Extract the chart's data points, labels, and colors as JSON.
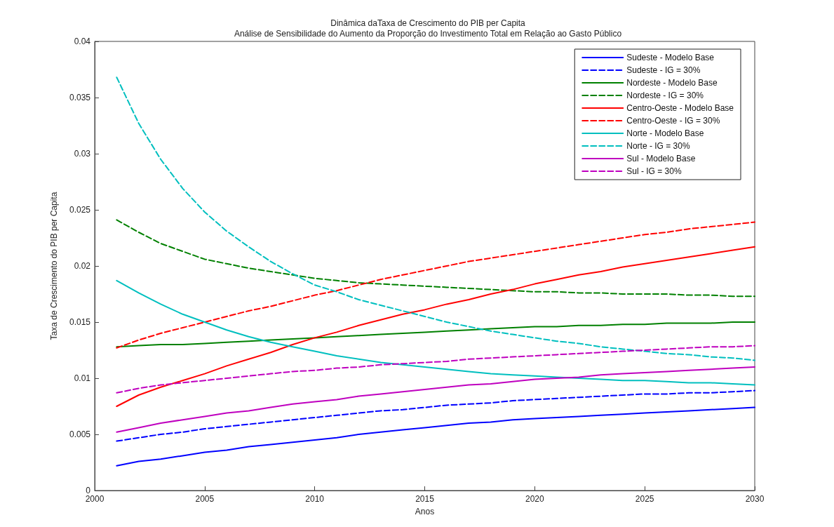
{
  "chart_data": {
    "type": "line",
    "title": "Dinâmica daTaxa de Crescimento do PIB per Capita",
    "subtitle": "Análise de Sensibilidade do Aumento da Proporção do Investimento Total em Relação ao Gasto Público",
    "xlabel": "Anos",
    "ylabel": "Taxa de Crescimento do PIB per Capita",
    "x": [
      2001,
      2002,
      2003,
      2004,
      2005,
      2006,
      2007,
      2008,
      2009,
      2010,
      2011,
      2012,
      2013,
      2014,
      2015,
      2016,
      2017,
      2018,
      2019,
      2020,
      2021,
      2022,
      2023,
      2024,
      2025,
      2026,
      2027,
      2028,
      2029,
      2030
    ],
    "xlim": [
      2000,
      2030
    ],
    "xticks": [
      2000,
      2005,
      2010,
      2015,
      2020,
      2025,
      2030
    ],
    "ylim": [
      0,
      0.04
    ],
    "yticks": [
      0,
      0.005,
      0.01,
      0.015,
      0.02,
      0.025,
      0.03,
      0.035,
      0.04
    ],
    "legend": "top right",
    "series": [
      {
        "name": "Sudeste - Modelo Base",
        "color": "#0000ff",
        "line_style": "solid",
        "values": [
          0.0022,
          0.0026,
          0.0028,
          0.0031,
          0.0034,
          0.0036,
          0.0039,
          0.0041,
          0.0043,
          0.0045,
          0.0047,
          0.005,
          0.0052,
          0.0054,
          0.0056,
          0.0058,
          0.006,
          0.0061,
          0.0063,
          0.0064,
          0.0065,
          0.0066,
          0.0067,
          0.0068,
          0.0069,
          0.007,
          0.0071,
          0.0072,
          0.0073,
          0.0074
        ]
      },
      {
        "name": "Sudeste - IG = 30%",
        "color": "#0000ff",
        "line_style": "dashed",
        "values": [
          0.0044,
          0.0047,
          0.005,
          0.0052,
          0.0055,
          0.0057,
          0.0059,
          0.0061,
          0.0063,
          0.0065,
          0.0067,
          0.0069,
          0.0071,
          0.0072,
          0.0074,
          0.0076,
          0.0077,
          0.0078,
          0.008,
          0.0081,
          0.0082,
          0.0083,
          0.0084,
          0.0085,
          0.0086,
          0.0086,
          0.0087,
          0.0087,
          0.0088,
          0.0089
        ]
      },
      {
        "name": "Nordeste - Modelo Base",
        "color": "#008000",
        "line_style": "solid",
        "values": [
          0.0128,
          0.0129,
          0.013,
          0.013,
          0.0131,
          0.0132,
          0.0133,
          0.0134,
          0.0135,
          0.0136,
          0.0137,
          0.0138,
          0.0139,
          0.014,
          0.0141,
          0.0142,
          0.0143,
          0.0144,
          0.0145,
          0.0146,
          0.0146,
          0.0147,
          0.0147,
          0.0148,
          0.0148,
          0.0149,
          0.0149,
          0.0149,
          0.015,
          0.015
        ]
      },
      {
        "name": "Nordeste - IG = 30%",
        "color": "#008000",
        "line_style": "dashed",
        "values": [
          0.0241,
          0.023,
          0.022,
          0.0213,
          0.0206,
          0.0202,
          0.0198,
          0.0195,
          0.0192,
          0.0189,
          0.0187,
          0.0185,
          0.0184,
          0.0183,
          0.0182,
          0.0181,
          0.018,
          0.0179,
          0.0178,
          0.0177,
          0.0177,
          0.0176,
          0.0176,
          0.0175,
          0.0175,
          0.0175,
          0.0174,
          0.0174,
          0.0173,
          0.0173
        ]
      },
      {
        "name": "Centro-Oeste - Modelo Base",
        "color": "#ff0000",
        "line_style": "solid",
        "values": [
          0.0075,
          0.0085,
          0.0092,
          0.0098,
          0.0104,
          0.0111,
          0.0117,
          0.0123,
          0.013,
          0.0136,
          0.0141,
          0.0147,
          0.0152,
          0.0157,
          0.0161,
          0.0166,
          0.017,
          0.0175,
          0.0179,
          0.0184,
          0.0188,
          0.0192,
          0.0195,
          0.0199,
          0.0202,
          0.0205,
          0.0208,
          0.0211,
          0.0214,
          0.0217
        ]
      },
      {
        "name": "Centro-Oeste - IG = 30%",
        "color": "#ff0000",
        "line_style": "dashed",
        "values": [
          0.0127,
          0.0134,
          0.014,
          0.0145,
          0.015,
          0.0155,
          0.016,
          0.0164,
          0.0169,
          0.0174,
          0.0178,
          0.0183,
          0.0188,
          0.0192,
          0.0196,
          0.02,
          0.0204,
          0.0207,
          0.021,
          0.0213,
          0.0216,
          0.0219,
          0.0222,
          0.0225,
          0.0228,
          0.023,
          0.0233,
          0.0235,
          0.0237,
          0.0239
        ]
      },
      {
        "name": "Norte - Modelo Base",
        "color": "#00bfbf",
        "line_style": "solid",
        "values": [
          0.0187,
          0.0176,
          0.0166,
          0.0157,
          0.015,
          0.0143,
          0.0137,
          0.0132,
          0.0128,
          0.0124,
          0.012,
          0.0117,
          0.0114,
          0.0112,
          0.011,
          0.0108,
          0.0106,
          0.0104,
          0.0103,
          0.0102,
          0.0101,
          0.01,
          0.0099,
          0.0098,
          0.0098,
          0.0097,
          0.0096,
          0.0096,
          0.0095,
          0.0094
        ]
      },
      {
        "name": "Norte - IG = 30%",
        "color": "#00bfbf",
        "line_style": "dashed",
        "values": [
          0.0368,
          0.0327,
          0.0295,
          0.0269,
          0.0248,
          0.0231,
          0.0217,
          0.0204,
          0.0193,
          0.0183,
          0.0177,
          0.017,
          0.0165,
          0.016,
          0.0155,
          0.015,
          0.0146,
          0.0142,
          0.0139,
          0.0136,
          0.0133,
          0.0131,
          0.0128,
          0.0126,
          0.0124,
          0.0122,
          0.0121,
          0.0119,
          0.0118,
          0.0116
        ]
      },
      {
        "name": "Sul - Modelo Base",
        "color": "#bf00bf",
        "line_style": "solid",
        "values": [
          0.0052,
          0.0056,
          0.006,
          0.0063,
          0.0066,
          0.0069,
          0.0071,
          0.0074,
          0.0077,
          0.0079,
          0.0081,
          0.0084,
          0.0086,
          0.0088,
          0.009,
          0.0092,
          0.0094,
          0.0095,
          0.0097,
          0.0099,
          0.01,
          0.0101,
          0.0103,
          0.0104,
          0.0105,
          0.0106,
          0.0107,
          0.0108,
          0.0109,
          0.011
        ]
      },
      {
        "name": "Sul - IG = 30%",
        "color": "#bf00bf",
        "line_style": "dashed",
        "values": [
          0.0087,
          0.0091,
          0.0094,
          0.0096,
          0.0098,
          0.01,
          0.0102,
          0.0104,
          0.0106,
          0.0107,
          0.0109,
          0.011,
          0.0112,
          0.0113,
          0.0114,
          0.0115,
          0.0117,
          0.0118,
          0.0119,
          0.012,
          0.0121,
          0.0122,
          0.0123,
          0.0124,
          0.0125,
          0.0126,
          0.0127,
          0.0128,
          0.0128,
          0.0129
        ]
      }
    ]
  }
}
